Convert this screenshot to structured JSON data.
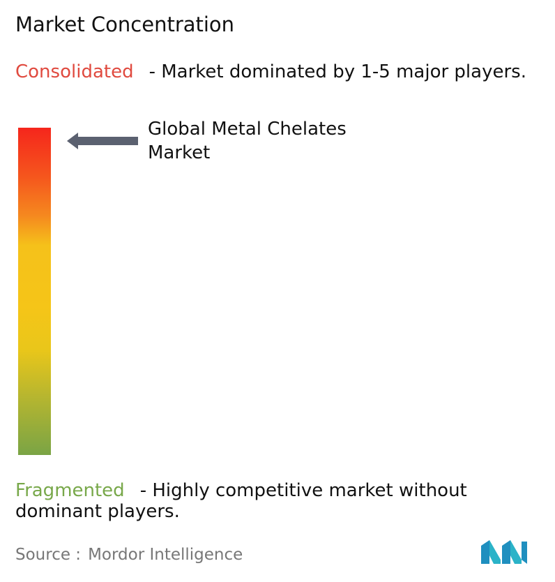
{
  "title": "Market Concentration",
  "consolidated": {
    "label": "Consolidated",
    "description": "- Market dominated by 1-5 major players."
  },
  "marker": {
    "label": "Global Metal Chelates Market"
  },
  "fragmented": {
    "label": "Fragmented",
    "description": "- Highly competitive market without dominant players."
  },
  "source": {
    "label": "Source :",
    "name": "Mordor Intelligence"
  }
}
